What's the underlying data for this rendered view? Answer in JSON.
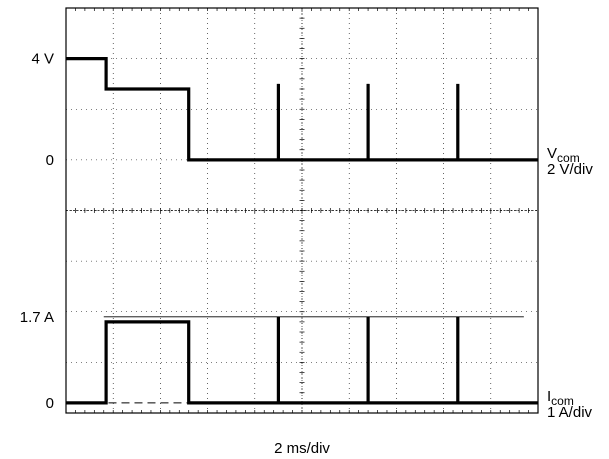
{
  "chart_data": {
    "type": "line",
    "title": "",
    "x_scale_label": "2 ms/div",
    "x_divisions": 10,
    "y_divisions": 8,
    "grid": true,
    "channels": [
      {
        "name": "V",
        "name_sub": "com",
        "scale_label": "2 V/div",
        "unit": "V",
        "y_per_div": 2,
        "zero_div_from_top": 3,
        "level_labels": [
          {
            "text": "4 V",
            "value": 4
          },
          {
            "text": "0",
            "value": 0
          }
        ],
        "x": [
          0,
          0.85,
          0.85,
          2.6,
          2.6,
          4.5,
          4.5,
          4.5,
          6.4,
          6.4,
          6.4,
          8.3,
          8.3,
          8.3,
          10
        ],
        "y": [
          4,
          4,
          2.8,
          2.8,
          0,
          0,
          3.0,
          0,
          0,
          3.0,
          0,
          0,
          3.0,
          0,
          0
        ]
      },
      {
        "name": "I",
        "name_sub": "com",
        "scale_label": "1 A/div",
        "unit": "A",
        "y_per_div": 1,
        "zero_div_from_top": 7.8,
        "level_labels": [
          {
            "text": "1.7 A",
            "value": 1.7
          },
          {
            "text": "0",
            "value": 0
          }
        ],
        "reference_level": 1.7,
        "x": [
          0,
          0.85,
          0.85,
          2.6,
          2.6,
          4.5,
          4.5,
          4.5,
          6.4,
          6.4,
          6.4,
          8.3,
          8.3,
          8.3,
          10
        ],
        "y": [
          0,
          0,
          1.6,
          1.6,
          0,
          0,
          1.7,
          0,
          0,
          1.7,
          0,
          0,
          1.7,
          0,
          0
        ]
      }
    ]
  },
  "colors": {
    "background": "#ffffff",
    "trace": "#000000",
    "grid": "#000000"
  }
}
